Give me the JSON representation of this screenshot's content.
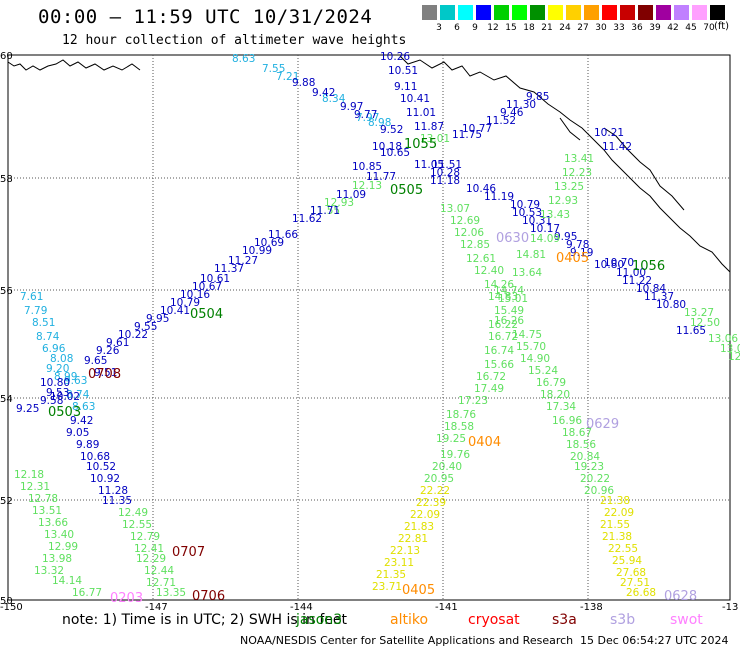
{
  "header": {
    "title": "00:00 – 11:59 UTC 10/31/2024",
    "subtitle": "12 hour collection of altimeter wave heights"
  },
  "colorbar": {
    "colors": [
      "#808080",
      "#00c8c8",
      "#00ffff",
      "#0000ff",
      "#00d000",
      "#00ff00",
      "#009000",
      "#ffff00",
      "#ffd000",
      "#ffa000",
      "#ff0000",
      "#c80000",
      "#800000",
      "#a000a0",
      "#c080ff",
      "#ffa0ff",
      "#000000"
    ],
    "labels": [
      "3",
      "6",
      "9",
      "12",
      "15",
      "18",
      "21",
      "24",
      "27",
      "30",
      "33",
      "36",
      "39",
      "42",
      "45",
      "70"
    ],
    "unit": "(ft)"
  },
  "axes": {
    "lon_labels": [
      "-150",
      "-147",
      "-144",
      "-141",
      "-138",
      "-13"
    ],
    "lat_labels": [
      "60",
      "58",
      "56",
      "54",
      "52",
      "50"
    ]
  },
  "satellite_colors": {
    "jason3": "#008000",
    "altika": "#ff8c00",
    "cryosat": "#ff0000",
    "s3a": "#800000",
    "s3b": "#b0a0e0",
    "swot": "#ff80ff",
    "cyan": "#20b0e0",
    "lightgreen": "#60e060",
    "yellow": "#e0e000",
    "navy": "#0000c0",
    "maroon": "#800000",
    "orange": "#ff8c00"
  },
  "tracks": [
    {
      "id": "cyan_nw",
      "color": "cyan",
      "start": "0603",
      "values": [
        "8.63",
        "7.55",
        "7.21",
        "8.34",
        "8.98",
        "7.97"
      ]
    },
    {
      "id": "navy_a",
      "color": "navy",
      "start": "0708",
      "values": [
        "9.51",
        "9.88",
        "9.42",
        "9.97",
        "9.77",
        "9.52",
        "10.18",
        "10.65",
        "11.05",
        "10.26",
        "10.51",
        "9.11",
        "10.41",
        "11.01",
        "11.87",
        "11.75",
        "10.77",
        "11.52",
        "9.46",
        "11.30",
        "9.85"
      ]
    },
    {
      "id": "lg_center",
      "color": "lightgreen",
      "start": "0505",
      "values": [
        "13.01",
        "12.13",
        "12.93",
        "11.55"
      ]
    },
    {
      "id": "navy_b",
      "color": "navy",
      "start": "0504",
      "values": [
        "11.77",
        "10.85",
        "11.09",
        "11.71",
        "11.62",
        "11.66",
        "10.69",
        "10.99",
        "11.27",
        "11.37",
        "10.61",
        "10.67",
        "10.16",
        "10.79",
        "10.41",
        "9.95",
        "9.55",
        "10.22",
        "9.61",
        "9.26",
        "9.65"
      ]
    },
    {
      "id": "navy_c",
      "color": "navy",
      "start": "0630",
      "values": [
        "11.51",
        "10.28",
        "11.18",
        "10.46",
        "11.19",
        "10.79",
        "10.53",
        "10.31",
        "10.17",
        "9.95",
        "9.78",
        "9.19",
        "10.80",
        "10.70",
        "11.00",
        "11.22",
        "10.84",
        "11.37",
        "10.80",
        "11.65",
        "10.21",
        "11.42"
      ]
    },
    {
      "id": "lg_e",
      "color": "lightgreen",
      "start": "1056",
      "values": [
        "13.41",
        "12.23",
        "13.25",
        "12.93",
        "13.43",
        "14.09",
        "14.81",
        "13.07",
        "12.69",
        "12.06",
        "12.85",
        "12.61",
        "12.40",
        "13.64",
        "14.26",
        "14.74",
        "13.27",
        "12.50",
        "13.06",
        "13.0",
        "12.85"
      ]
    },
    {
      "id": "cyan_w",
      "color": "cyan",
      "start": "0503",
      "values": [
        "7.61",
        "7.79",
        "8.51",
        "8.74",
        "6.96",
        "8.08",
        "9.20",
        "8.99",
        "9.63",
        "8.74",
        "8.63"
      ]
    },
    {
      "id": "navy_d",
      "color": "navy",
      "start": "0503",
      "values": [
        "10.80",
        "10.02",
        "9.53",
        "9.58",
        "9.25",
        "9.42",
        "9.05",
        "9.89",
        "10.68",
        "10.52",
        "10.92",
        "11.28",
        "11.35"
      ]
    },
    {
      "id": "lg_sw",
      "color": "lightgreen",
      "start": "0707",
      "values": [
        "12.18",
        "12.31",
        "12.78",
        "13.51",
        "13.66",
        "13.40",
        "12.99",
        "13.98",
        "13.32",
        "14.14",
        "16.77",
        "12.49",
        "12.55",
        "12.79",
        "12.41",
        "12.29",
        "12.44",
        "12.71",
        "13.35"
      ]
    },
    {
      "id": "lg_s",
      "color": "lightgreen",
      "start": "0404",
      "values": [
        "14.83",
        "15.01",
        "15.49",
        "16.26",
        "16.22",
        "16.72",
        "16.74",
        "15.66",
        "16.72",
        "17.49",
        "17.23",
        "18.76",
        "18.58",
        "19.25",
        "19.76",
        "20.40",
        "20.95",
        "14.75",
        "15.70",
        "14.90",
        "15.24",
        "16.79",
        "18.20",
        "17.34",
        "16.96",
        "18.67",
        "18.56",
        "20.84",
        "19.23",
        "20.22",
        "20.96"
      ]
    },
    {
      "id": "yel_s",
      "color": "yellow",
      "start": "0405",
      "values": [
        "22.22",
        "22.39",
        "22.09",
        "21.83",
        "22.81",
        "22.13",
        "23.11",
        "21.35",
        "23.71",
        "21.38",
        "22.09",
        "21.55",
        "21.38",
        "22.55",
        "25.94",
        "27.68",
        "27.51",
        "26.68"
      ]
    }
  ],
  "track_labels": [
    {
      "text": "1055",
      "color": "jason3"
    },
    {
      "text": "0505",
      "color": "jason3"
    },
    {
      "text": "0630",
      "color": "s3b"
    },
    {
      "text": "0405",
      "color": "altika"
    },
    {
      "text": "1056",
      "color": "jason3"
    },
    {
      "text": "0504",
      "color": "jason3"
    },
    {
      "text": "0708",
      "color": "maroon"
    },
    {
      "text": "0503",
      "color": "jason3"
    },
    {
      "text": "0404",
      "color": "altika"
    },
    {
      "text": "0629",
      "color": "s3b"
    },
    {
      "text": "0707",
      "color": "maroon"
    },
    {
      "text": "0203",
      "color": "swot"
    },
    {
      "text": "0706",
      "color": "maroon"
    },
    {
      "text": "0405",
      "color": "altika"
    },
    {
      "text": "0628",
      "color": "s3b"
    }
  ],
  "footer": {
    "note": "note:  1) Time is in UTC;  2) SWH is in feet",
    "satellites": [
      "jason3",
      "altiko",
      "cryosat",
      "s3a",
      "s3b",
      "swot"
    ],
    "credit": "NOAA/NESDIS Center for Satellite Applications and Research",
    "timestamp": "15 Dec 06:54:27 UTC 2024"
  }
}
